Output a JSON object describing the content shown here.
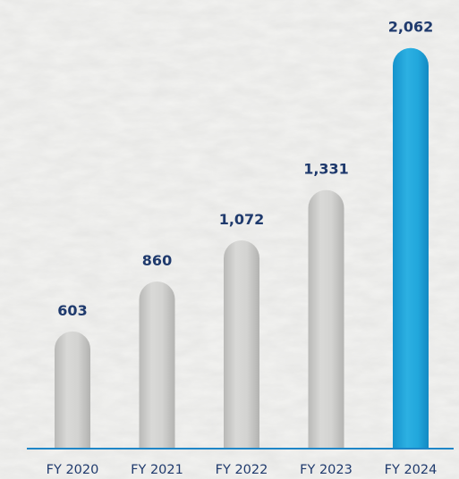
{
  "chart_data": {
    "type": "bar",
    "title": "",
    "xlabel": "",
    "ylabel": "",
    "categories": [
      "FY 2020",
      "FY 2021",
      "FY 2022",
      "FY 2023",
      "FY 2024"
    ],
    "values": [
      603,
      860,
      1072,
      1331,
      2062
    ],
    "value_labels": [
      "603",
      "860",
      "1,072",
      "1,331",
      "2,062"
    ],
    "highlighted_category": "FY 2024",
    "grid": false,
    "legend": "none",
    "colors": {
      "bar_default": "#c9c9c7",
      "bar_highlight": "#1fa3d8",
      "axis_line": "#1f86c7",
      "label_text": "#1f3a6d",
      "background": "#f3f3f1"
    }
  }
}
